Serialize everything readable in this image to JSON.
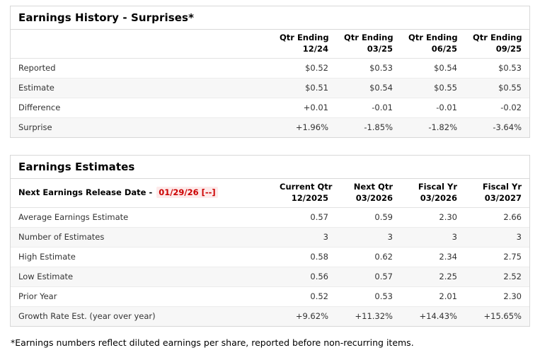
{
  "colors": {
    "positive": "#008000",
    "negative": "#cc0000",
    "row_stripe": "#f7f7f7",
    "border": "#d8d8d8",
    "release_highlight": "#fdeaea"
  },
  "history": {
    "title": "Earnings History - Surprises*",
    "columns": [
      {
        "line1": "Qtr Ending",
        "line2": "12/24"
      },
      {
        "line1": "Qtr Ending",
        "line2": "03/25"
      },
      {
        "line1": "Qtr Ending",
        "line2": "06/25"
      },
      {
        "line1": "Qtr Ending",
        "line2": "09/25"
      }
    ],
    "rows": [
      {
        "label": "Reported",
        "values": [
          "$0.52",
          "$0.53",
          "$0.54",
          "$0.53"
        ],
        "value_classes": [
          "",
          "",
          "",
          ""
        ]
      },
      {
        "label": "Estimate",
        "values": [
          "$0.51",
          "$0.54",
          "$0.55",
          "$0.55"
        ],
        "value_classes": [
          "",
          "",
          "",
          ""
        ]
      },
      {
        "label": "Difference",
        "values": [
          "+0.01",
          "-0.01",
          "-0.01",
          "-0.02"
        ],
        "value_classes": [
          "pos",
          "neg",
          "neg",
          "neg"
        ]
      },
      {
        "label": "Surprise",
        "values": [
          "+1.96%",
          "-1.85%",
          "-1.82%",
          "-3.64%"
        ],
        "value_classes": [
          "pos",
          "neg",
          "neg",
          "neg"
        ]
      }
    ]
  },
  "estimates": {
    "title": "Earnings Estimates",
    "release_row": {
      "label": "Next Earnings Release Date - ",
      "date": "01/29/26 [--]"
    },
    "columns": [
      {
        "line1": "Current Qtr",
        "line2": "12/2025"
      },
      {
        "line1": "Next Qtr",
        "line2": "03/2026"
      },
      {
        "line1": "Fiscal Yr",
        "line2": "03/2026"
      },
      {
        "line1": "Fiscal Yr",
        "line2": "03/2027"
      }
    ],
    "rows": [
      {
        "label": "Average Earnings Estimate",
        "values": [
          "0.57",
          "0.59",
          "2.30",
          "2.66"
        ],
        "value_classes": [
          "",
          "",
          "",
          ""
        ]
      },
      {
        "label": "Number of Estimates",
        "values": [
          "3",
          "3",
          "3",
          "3"
        ],
        "value_classes": [
          "",
          "",
          "",
          ""
        ]
      },
      {
        "label": "High Estimate",
        "values": [
          "0.58",
          "0.62",
          "2.34",
          "2.75"
        ],
        "value_classes": [
          "",
          "",
          "",
          ""
        ]
      },
      {
        "label": "Low Estimate",
        "values": [
          "0.56",
          "0.57",
          "2.25",
          "2.52"
        ],
        "value_classes": [
          "",
          "",
          "",
          ""
        ]
      },
      {
        "label": "Prior Year",
        "values": [
          "0.52",
          "0.53",
          "2.01",
          "2.30"
        ],
        "value_classes": [
          "",
          "",
          "",
          ""
        ]
      },
      {
        "label": "Growth Rate Est. (year over year)",
        "values": [
          "+9.62%",
          "+11.32%",
          "+14.43%",
          "+15.65%"
        ],
        "value_classes": [
          "pos",
          "pos",
          "pos",
          "pos"
        ]
      }
    ]
  },
  "footnote": "*Earnings numbers reflect diluted earnings per share, reported before non-recurring items."
}
